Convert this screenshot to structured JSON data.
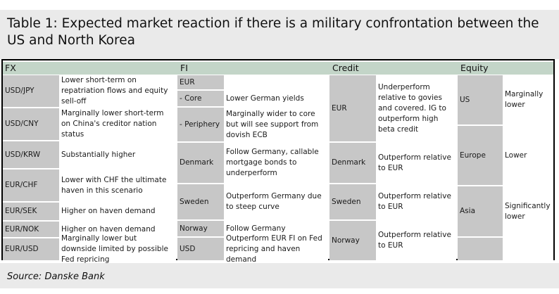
{
  "title": "Table 1: Expected market reaction if there is a military confrontation between the US and North Korea",
  "headers": {
    "fx": "FX",
    "fi": "FI",
    "credit": "Credit",
    "equity": "Equity"
  },
  "fx": [
    {
      "label": "USD/JPY",
      "text": "Lower short-term on repatriation flows and equity sell-off"
    },
    {
      "label": "USD/CNY",
      "text": "Marginally lower short-term on China's creditor nation status"
    },
    {
      "label": "USD/KRW",
      "text": "Substantially higher"
    },
    {
      "label": "EUR/CHF",
      "text": "Lower with CHF the ultimate haven in this scenario"
    },
    {
      "label": "EUR/SEK",
      "text": "Higher on haven demand"
    },
    {
      "label": "EUR/NOK",
      "text": "Higher on haven demand"
    },
    {
      "label": "EUR/USD",
      "text": "Marginally lower but downside limited by possible Fed repricing"
    }
  ],
  "fi": [
    {
      "label": "EUR",
      "text": ""
    },
    {
      "label": "- Core",
      "text": "Lower German yields"
    },
    {
      "label": "- Periphery",
      "text": "Marginally wider to core but will see support from dovish ECB"
    },
    {
      "label": "Denmark",
      "text": "Follow Germany, callable mortgage bonds to underperform"
    },
    {
      "label": "Sweden",
      "text": "Outperform Germany due to steep curve"
    },
    {
      "label": "Norway",
      "text": "Follow Germany"
    },
    {
      "label": "USD",
      "text": "Outperform EUR FI on Fed repricing and haven demand"
    }
  ],
  "credit": [
    {
      "label": "EUR",
      "text": "Underperform relative to govies and covered. IG to outperform high beta credit"
    },
    {
      "label": "Denmark",
      "text": "Outperform relative to EUR"
    },
    {
      "label": "Sweden",
      "text": "Outperform relative to EUR"
    },
    {
      "label": "Norway",
      "text": "Outperform relative to EUR"
    }
  ],
  "equity": [
    {
      "label": "US",
      "text": "Marginally lower"
    },
    {
      "label": "Europe",
      "text": "Lower"
    },
    {
      "label": "Asia",
      "text": "Significantly lower"
    }
  ],
  "source": "Source: Danske Bank",
  "colors": {
    "header": "#c3d5c8",
    "label_cell": "#c7c7c7",
    "panel": "#eaeaea"
  }
}
